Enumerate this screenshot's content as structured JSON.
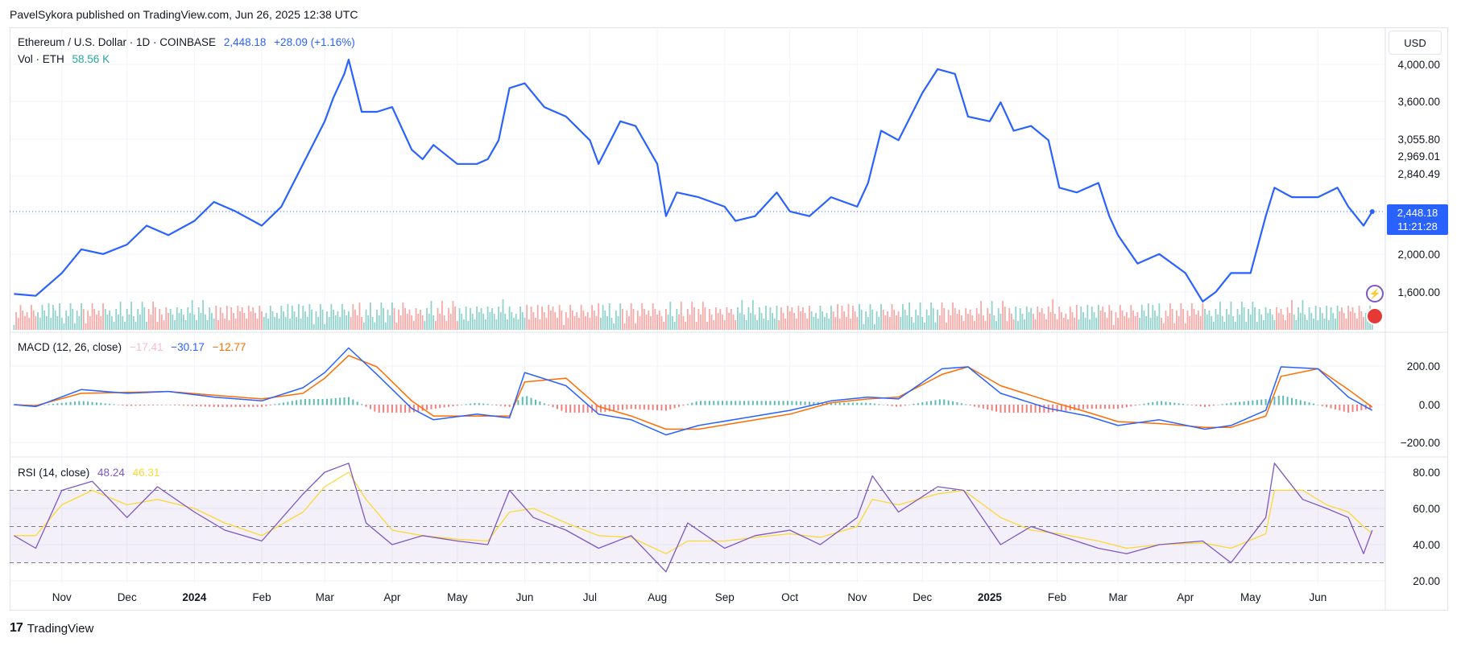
{
  "header": {
    "published": "PavelSykora published on TradingView.com, Jun 26, 2025 12:38 UTC"
  },
  "legend": {
    "symbol": "Ethereum / U.S. Dollar · 1D · COINBASE",
    "price": "2,448.18",
    "change": "+28.09 (+1.16%)",
    "vol_label": "Vol · ETH",
    "vol_value": "58.56 K",
    "macd_label": "MACD (12, 26, close)",
    "macd_hist": "−17.41",
    "macd_line": "−30.17",
    "macd_signal": "−12.77",
    "rsi_label": "RSI (14, close)",
    "rsi_value": "48.24",
    "rsi_ma": "46.31"
  },
  "currency_button": "USD",
  "price_badge": {
    "price": "2,448.18",
    "countdown": "11:21:28"
  },
  "footer": {
    "brand": "TradingView"
  },
  "colors": {
    "price_line": "#2962ff",
    "macd_line": "#2962ff",
    "signal_line": "#ff6d00",
    "rsi_line": "#7e57c2",
    "rsi_ma": "#fdd835",
    "up": "#26a69a",
    "down": "#ef5350"
  },
  "chart_data": [
    {
      "type": "line",
      "name": "price",
      "y_axis_ticks": [
        "4,000.00",
        "3,600.00",
        "3,055.80",
        "2,969.01",
        "2,840.49",
        "2,000.00",
        "1,600.00"
      ],
      "x_axis_ticks": [
        "Nov",
        "Dec",
        "2024",
        "Feb",
        "Mar",
        "Apr",
        "May",
        "Jun",
        "Jul",
        "Aug",
        "Sep",
        "Oct",
        "Nov",
        "Dec",
        "2025",
        "Feb",
        "Mar",
        "Apr",
        "May",
        "Jun"
      ],
      "x_bold": [
        "2024",
        "2025"
      ],
      "ylim": [
        1000,
        4200
      ],
      "x": [
        "2023-10-10",
        "2023-10-20",
        "2023-11-01",
        "2023-11-10",
        "2023-11-20",
        "2023-12-01",
        "2023-12-10",
        "2023-12-20",
        "2024-01-01",
        "2024-01-10",
        "2024-01-20",
        "2024-02-01",
        "2024-02-10",
        "2024-02-20",
        "2024-03-01",
        "2024-03-05",
        "2024-03-10",
        "2024-03-12",
        "2024-03-18",
        "2024-03-25",
        "2024-04-01",
        "2024-04-10",
        "2024-04-15",
        "2024-04-20",
        "2024-05-01",
        "2024-05-10",
        "2024-05-15",
        "2024-05-20",
        "2024-05-25",
        "2024-06-01",
        "2024-06-10",
        "2024-06-20",
        "2024-07-01",
        "2024-07-05",
        "2024-07-15",
        "2024-07-22",
        "2024-08-01",
        "2024-08-05",
        "2024-08-10",
        "2024-08-20",
        "2024-09-01",
        "2024-09-06",
        "2024-09-15",
        "2024-09-25",
        "2024-10-01",
        "2024-10-10",
        "2024-10-20",
        "2024-11-01",
        "2024-11-06",
        "2024-11-12",
        "2024-11-20",
        "2024-12-01",
        "2024-12-08",
        "2024-12-16",
        "2024-12-22",
        "2025-01-01",
        "2025-01-06",
        "2025-01-12",
        "2025-01-20",
        "2025-01-28",
        "2025-02-02",
        "2025-02-10",
        "2025-02-20",
        "2025-02-25",
        "2025-03-01",
        "2025-03-10",
        "2025-03-20",
        "2025-04-01",
        "2025-04-09",
        "2025-04-15",
        "2025-04-22",
        "2025-05-01",
        "2025-05-08",
        "2025-05-12",
        "2025-05-20",
        "2025-06-01",
        "2025-06-10",
        "2025-06-15",
        "2025-06-22",
        "2025-06-26"
      ],
      "values": [
        1580,
        1560,
        1800,
        2050,
        2000,
        2100,
        2300,
        2200,
        2350,
        2550,
        2450,
        2300,
        2500,
        2950,
        3400,
        3650,
        3900,
        4050,
        3500,
        3500,
        3550,
        3100,
        3000,
        3150,
        2950,
        2950,
        3000,
        3200,
        3750,
        3800,
        3550,
        3450,
        3200,
        2950,
        3400,
        3350,
        2950,
        2400,
        2650,
        2600,
        2500,
        2350,
        2400,
        2650,
        2450,
        2400,
        2600,
        2500,
        2750,
        3300,
        3200,
        3700,
        3950,
        3900,
        3450,
        3400,
        3600,
        3300,
        3350,
        3200,
        2700,
        2650,
        2750,
        2400,
        2200,
        1900,
        2000,
        1800,
        1500,
        1600,
        1800,
        1800,
        2400,
        2700,
        2600,
        2600,
        2700,
        2500,
        2300,
        2448
      ]
    },
    {
      "type": "bar",
      "name": "volume",
      "description": "volume histogram along the bottom of the price pane (decorative, approximated)"
    },
    {
      "type": "line",
      "name": "MACD",
      "y_axis_ticks": [
        "200.00",
        "0.00",
        "−200.00"
      ],
      "ylim": [
        -220,
        280
      ],
      "x": [
        "2023-10-10",
        "2023-10-20",
        "2023-11-10",
        "2023-12-01",
        "2023-12-20",
        "2024-01-10",
        "2024-02-01",
        "2024-02-20",
        "2024-03-01",
        "2024-03-12",
        "2024-03-25",
        "2024-04-10",
        "2024-04-20",
        "2024-05-10",
        "2024-05-25",
        "2024-06-01",
        "2024-06-20",
        "2024-07-05",
        "2024-07-20",
        "2024-08-05",
        "2024-08-20",
        "2024-09-10",
        "2024-10-01",
        "2024-10-20",
        "2024-11-06",
        "2024-11-20",
        "2024-12-10",
        "2024-12-22",
        "2025-01-06",
        "2025-01-28",
        "2025-02-15",
        "2025-03-01",
        "2025-03-20",
        "2025-04-10",
        "2025-04-22",
        "2025-05-08",
        "2025-05-15",
        "2025-06-01",
        "2025-06-15",
        "2025-06-26"
      ],
      "macd": [
        0,
        -10,
        80,
        60,
        70,
        40,
        20,
        90,
        170,
        300,
        160,
        -20,
        -80,
        -50,
        -70,
        170,
        100,
        -50,
        -80,
        -160,
        -110,
        -70,
        -30,
        20,
        40,
        30,
        190,
        200,
        60,
        -20,
        -60,
        -110,
        -80,
        -130,
        -110,
        -30,
        200,
        190,
        40,
        -30
      ],
      "signal": [
        0,
        -5,
        60,
        65,
        70,
        50,
        30,
        60,
        140,
        260,
        200,
        20,
        -60,
        -60,
        -60,
        120,
        140,
        -10,
        -60,
        -130,
        -130,
        -90,
        -50,
        10,
        30,
        40,
        160,
        200,
        100,
        20,
        -40,
        -90,
        -100,
        -120,
        -120,
        -60,
        150,
        190,
        80,
        -13
      ]
    },
    {
      "type": "line",
      "name": "RSI",
      "y_axis_ticks": [
        "80.00",
        "60.00",
        "40.00",
        "20.00"
      ],
      "ylim": [
        20,
        85
      ],
      "bands": [
        30,
        50,
        70
      ],
      "x": [
        "2023-10-10",
        "2023-10-20",
        "2023-11-01",
        "2023-11-15",
        "2023-12-01",
        "2023-12-15",
        "2024-01-01",
        "2024-01-15",
        "2024-02-01",
        "2024-02-20",
        "2024-03-01",
        "2024-03-12",
        "2024-03-20",
        "2024-04-01",
        "2024-04-15",
        "2024-05-01",
        "2024-05-15",
        "2024-05-25",
        "2024-06-05",
        "2024-06-20",
        "2024-07-05",
        "2024-07-20",
        "2024-08-05",
        "2024-08-15",
        "2024-09-01",
        "2024-09-15",
        "2024-10-01",
        "2024-10-15",
        "2024-11-01",
        "2024-11-08",
        "2024-11-20",
        "2024-12-08",
        "2024-12-20",
        "2025-01-06",
        "2025-01-20",
        "2025-02-02",
        "2025-02-20",
        "2025-03-05",
        "2025-03-20",
        "2025-04-09",
        "2025-04-22",
        "2025-05-08",
        "2025-05-12",
        "2025-05-25",
        "2025-06-05",
        "2025-06-15",
        "2025-06-22",
        "2025-06-26"
      ],
      "rsi": [
        45,
        38,
        70,
        75,
        55,
        72,
        58,
        48,
        42,
        68,
        80,
        85,
        52,
        40,
        45,
        42,
        40,
        70,
        55,
        48,
        38,
        45,
        25,
        52,
        38,
        45,
        48,
        40,
        55,
        78,
        58,
        72,
        70,
        40,
        50,
        45,
        38,
        35,
        40,
        42,
        30,
        55,
        85,
        65,
        60,
        55,
        35,
        48
      ],
      "rsi_ma": [
        45,
        45,
        62,
        70,
        62,
        65,
        60,
        52,
        45,
        58,
        72,
        80,
        65,
        48,
        45,
        43,
        42,
        58,
        60,
        52,
        45,
        44,
        35,
        42,
        42,
        44,
        46,
        44,
        50,
        65,
        62,
        68,
        70,
        55,
        48,
        46,
        42,
        38,
        40,
        41,
        38,
        46,
        70,
        70,
        62,
        58,
        50,
        46
      ]
    }
  ]
}
